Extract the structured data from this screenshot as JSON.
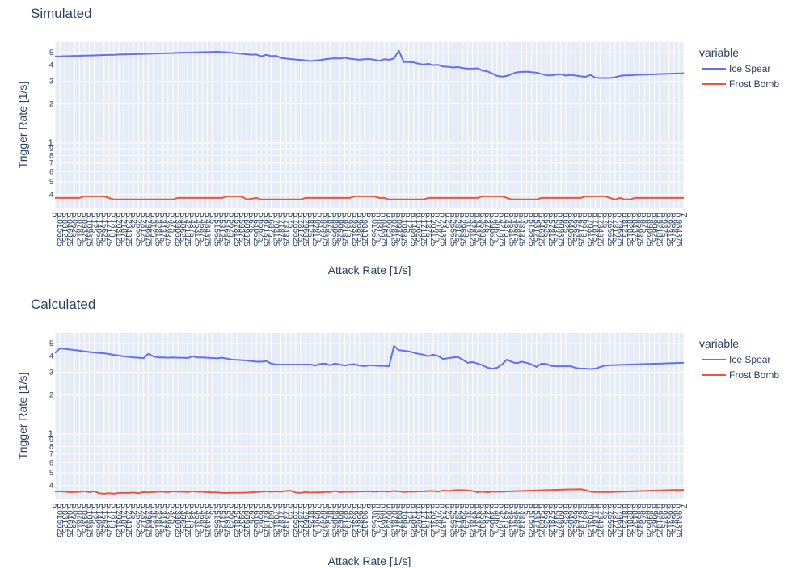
{
  "chart_data": [
    {
      "type": "line",
      "title": "Simulated",
      "x_label": "Attack Rate [1/s]",
      "y_label": "Trigger Rate [1/s]",
      "legend_title": "variable",
      "categories": [
        "5",
        "5.015625",
        "5.03125",
        "5.046875",
        "5.0625",
        "5.078125",
        "5.09375",
        "5.109375",
        "5.125",
        "5.140625",
        "5.15625",
        "5.171875",
        "5.1875",
        "5.203125",
        "5.21875",
        "5.234375",
        "5.25",
        "5.265625",
        "5.28125",
        "5.296875",
        "5.3125",
        "5.328125",
        "5.34375",
        "5.359375",
        "5.375",
        "5.390625",
        "5.40625",
        "5.421875",
        "5.4375",
        "5.453125",
        "5.46875",
        "5.484375",
        "5.5",
        "5.515625",
        "5.53125",
        "5.546875",
        "5.5625",
        "5.578125",
        "5.59375",
        "5.609375",
        "5.625",
        "5.640625",
        "5.65625",
        "5.671875",
        "5.6875",
        "5.703125",
        "5.71875",
        "5.734375",
        "5.75",
        "5.765625",
        "5.78125",
        "5.796875",
        "5.8125",
        "5.828125",
        "5.84375",
        "5.859375",
        "5.875",
        "5.890625",
        "5.90625",
        "5.921875",
        "5.9375",
        "5.953125",
        "5.96875",
        "5.984375",
        "6",
        "6.015625",
        "6.03125",
        "6.046875",
        "6.0625",
        "6.078125",
        "6.09375",
        "6.109375",
        "6.125",
        "6.140625",
        "6.15625",
        "6.171875",
        "6.1875",
        "6.203125",
        "6.21875",
        "6.234375",
        "6.25",
        "6.265625",
        "6.28125",
        "6.296875",
        "6.3125",
        "6.328125",
        "6.34375",
        "6.359375",
        "6.375",
        "6.390625",
        "6.40625",
        "6.421875",
        "6.4375",
        "6.453125",
        "6.46875",
        "6.484375",
        "6.5",
        "6.515625",
        "6.53125",
        "6.546875",
        "6.5625",
        "6.578125",
        "6.59375",
        "6.609375",
        "6.625",
        "6.640625",
        "6.65625",
        "6.671875",
        "6.6875",
        "6.703125",
        "6.71875",
        "6.734375",
        "6.75",
        "6.765625",
        "6.78125",
        "6.796875",
        "6.8125",
        "6.828125",
        "6.84375",
        "6.859375",
        "6.875",
        "6.890625",
        "6.90625",
        "6.921875",
        "6.9375",
        "6.953125",
        "6.96875",
        "6.984375",
        "7"
      ],
      "series": [
        {
          "name": "Ice Spear",
          "color": "#636efa",
          "values": [
            4.66,
            4.67,
            4.69,
            4.7,
            4.71,
            4.72,
            4.74,
            4.75,
            4.76,
            4.77,
            4.79,
            4.8,
            4.81,
            4.83,
            4.84,
            4.85,
            4.86,
            4.88,
            4.89,
            4.9,
            4.91,
            4.93,
            4.94,
            4.95,
            4.96,
            4.98,
            4.99,
            5.0,
            5.01,
            5.03,
            5.04,
            5.05,
            5.06,
            5.08,
            5.05,
            5.02,
            4.98,
            4.94,
            4.9,
            4.85,
            4.82,
            4.83,
            4.68,
            4.8,
            4.7,
            4.72,
            4.55,
            4.5,
            4.45,
            4.42,
            4.39,
            4.35,
            4.3,
            4.34,
            4.38,
            4.44,
            4.48,
            4.52,
            4.5,
            4.56,
            4.48,
            4.44,
            4.4,
            4.44,
            4.46,
            4.4,
            4.32,
            4.44,
            4.4,
            4.5,
            5.16,
            4.22,
            4.22,
            4.2,
            4.1,
            4.04,
            4.1,
            4.0,
            4.02,
            3.9,
            3.88,
            3.83,
            3.86,
            3.8,
            3.76,
            3.76,
            3.78,
            3.63,
            3.58,
            3.45,
            3.3,
            3.26,
            3.3,
            3.42,
            3.52,
            3.55,
            3.56,
            3.53,
            3.5,
            3.42,
            3.34,
            3.33,
            3.38,
            3.4,
            3.32,
            3.36,
            3.32,
            3.28,
            3.25,
            3.35,
            3.2,
            3.18,
            3.18,
            3.18,
            3.22,
            3.3,
            3.33,
            3.33,
            3.36,
            3.37,
            3.38,
            3.39,
            3.4,
            3.41,
            3.42,
            3.43,
            3.44,
            3.45,
            3.46
          ]
        },
        {
          "name": "Frost Bomb",
          "color": "#ef553b",
          "values": [
            0.376,
            0.376,
            0.376,
            0.376,
            0.376,
            0.376,
            0.387,
            0.387,
            0.387,
            0.387,
            0.387,
            0.376,
            0.366,
            0.366,
            0.366,
            0.366,
            0.366,
            0.366,
            0.366,
            0.366,
            0.366,
            0.366,
            0.366,
            0.366,
            0.366,
            0.376,
            0.376,
            0.376,
            0.376,
            0.376,
            0.376,
            0.376,
            0.376,
            0.376,
            0.376,
            0.387,
            0.387,
            0.387,
            0.387,
            0.366,
            0.37,
            0.376,
            0.366,
            0.366,
            0.366,
            0.366,
            0.366,
            0.366,
            0.366,
            0.366,
            0.366,
            0.376,
            0.376,
            0.376,
            0.376,
            0.376,
            0.376,
            0.376,
            0.376,
            0.376,
            0.376,
            0.387,
            0.387,
            0.387,
            0.387,
            0.387,
            0.376,
            0.376,
            0.366,
            0.366,
            0.366,
            0.366,
            0.366,
            0.366,
            0.366,
            0.366,
            0.376,
            0.376,
            0.376,
            0.376,
            0.376,
            0.376,
            0.376,
            0.376,
            0.376,
            0.376,
            0.376,
            0.387,
            0.387,
            0.387,
            0.387,
            0.387,
            0.376,
            0.366,
            0.366,
            0.366,
            0.366,
            0.366,
            0.366,
            0.376,
            0.376,
            0.376,
            0.376,
            0.376,
            0.376,
            0.376,
            0.376,
            0.376,
            0.387,
            0.387,
            0.387,
            0.387,
            0.387,
            0.376,
            0.366,
            0.376,
            0.366,
            0.366,
            0.376,
            0.376,
            0.376,
            0.376,
            0.376,
            0.376,
            0.376,
            0.376,
            0.376,
            0.376,
            0.376
          ]
        }
      ],
      "log_y": true,
      "grid": true,
      "ylim": [
        0.316,
        6.03
      ],
      "yticks": [
        {
          "value": 0.4,
          "label": "4"
        },
        {
          "value": 0.5,
          "label": "5"
        },
        {
          "value": 0.6,
          "label": "6"
        },
        {
          "value": 0.7,
          "label": "7"
        },
        {
          "value": 0.8,
          "label": "8"
        },
        {
          "value": 0.9,
          "label": "9"
        },
        1,
        2,
        3,
        4,
        5
      ]
    },
    {
      "type": "line",
      "title": "Calculated",
      "x_label": "Attack Rate [1/s]",
      "y_label": "Trigger Rate [1/s]",
      "legend_title": "variable",
      "categories": [
        "5",
        "5.015625",
        "5.03125",
        "5.046875",
        "5.0625",
        "5.078125",
        "5.09375",
        "5.109375",
        "5.125",
        "5.140625",
        "5.15625",
        "5.171875",
        "5.1875",
        "5.203125",
        "5.21875",
        "5.234375",
        "5.25",
        "5.265625",
        "5.28125",
        "5.296875",
        "5.3125",
        "5.328125",
        "5.34375",
        "5.359375",
        "5.375",
        "5.390625",
        "5.40625",
        "5.421875",
        "5.4375",
        "5.453125",
        "5.46875",
        "5.484375",
        "5.5",
        "5.515625",
        "5.53125",
        "5.546875",
        "5.5625",
        "5.578125",
        "5.59375",
        "5.609375",
        "5.625",
        "5.640625",
        "5.65625",
        "5.671875",
        "5.6875",
        "5.703125",
        "5.71875",
        "5.734375",
        "5.75",
        "5.765625",
        "5.78125",
        "5.796875",
        "5.8125",
        "5.828125",
        "5.84375",
        "5.859375",
        "5.875",
        "5.890625",
        "5.90625",
        "5.921875",
        "5.9375",
        "5.953125",
        "5.96875",
        "5.984375",
        "6",
        "6.015625",
        "6.03125",
        "6.046875",
        "6.0625",
        "6.078125",
        "6.09375",
        "6.109375",
        "6.125",
        "6.140625",
        "6.15625",
        "6.171875",
        "6.1875",
        "6.203125",
        "6.21875",
        "6.234375",
        "6.25",
        "6.265625",
        "6.28125",
        "6.296875",
        "6.3125",
        "6.328125",
        "6.34375",
        "6.359375",
        "6.375",
        "6.390625",
        "6.40625",
        "6.421875",
        "6.4375",
        "6.453125",
        "6.46875",
        "6.484375",
        "6.5",
        "6.515625",
        "6.53125",
        "6.546875",
        "6.5625",
        "6.578125",
        "6.59375",
        "6.609375",
        "6.625",
        "6.640625",
        "6.65625",
        "6.671875",
        "6.6875",
        "6.703125",
        "6.71875",
        "6.734375",
        "6.75",
        "6.765625",
        "6.78125",
        "6.796875",
        "6.8125",
        "6.828125",
        "6.84375",
        "6.859375",
        "6.875",
        "6.890625",
        "6.90625",
        "6.921875",
        "6.9375",
        "6.953125",
        "6.96875",
        "6.984375",
        "7"
      ],
      "series": [
        {
          "name": "Ice Spear",
          "color": "#636efa",
          "values": [
            4.22,
            4.59,
            4.55,
            4.5,
            4.45,
            4.4,
            4.35,
            4.3,
            4.26,
            4.22,
            4.2,
            4.15,
            4.08,
            4.04,
            3.98,
            3.95,
            3.9,
            3.88,
            3.85,
            4.16,
            3.98,
            3.9,
            3.9,
            3.88,
            3.9,
            3.88,
            3.88,
            3.86,
            3.98,
            3.9,
            3.9,
            3.88,
            3.86,
            3.84,
            3.88,
            3.82,
            3.76,
            3.74,
            3.72,
            3.7,
            3.66,
            3.62,
            3.62,
            3.66,
            3.5,
            3.44,
            3.44,
            3.44,
            3.44,
            3.44,
            3.44,
            3.44,
            3.44,
            3.38,
            3.48,
            3.5,
            3.4,
            3.5,
            3.44,
            3.38,
            3.44,
            3.46,
            3.38,
            3.34,
            3.4,
            3.38,
            3.36,
            3.36,
            3.34,
            4.79,
            4.44,
            4.4,
            4.35,
            4.25,
            4.16,
            4.1,
            3.99,
            4.1,
            4.0,
            3.8,
            3.85,
            3.9,
            3.93,
            3.75,
            3.55,
            3.6,
            3.5,
            3.4,
            3.26,
            3.2,
            3.25,
            3.45,
            3.76,
            3.6,
            3.52,
            3.62,
            3.55,
            3.45,
            3.3,
            3.5,
            3.48,
            3.36,
            3.34,
            3.34,
            3.34,
            3.34,
            3.24,
            3.2,
            3.2,
            3.18,
            3.2,
            3.3,
            3.38,
            3.4,
            3.41,
            3.42,
            3.43,
            3.44,
            3.45,
            3.46,
            3.47,
            3.48,
            3.49,
            3.5,
            3.51,
            3.52,
            3.53,
            3.54,
            3.55
          ]
        },
        {
          "name": "Frost Bomb",
          "color": "#ef553b",
          "values": [
            0.36,
            0.36,
            0.358,
            0.355,
            0.355,
            0.358,
            0.36,
            0.355,
            0.36,
            0.348,
            0.345,
            0.348,
            0.345,
            0.35,
            0.35,
            0.35,
            0.352,
            0.348,
            0.355,
            0.353,
            0.355,
            0.358,
            0.358,
            0.355,
            0.36,
            0.358,
            0.358,
            0.356,
            0.36,
            0.357,
            0.357,
            0.355,
            0.353,
            0.353,
            0.35,
            0.35,
            0.351,
            0.351,
            0.351,
            0.352,
            0.354,
            0.356,
            0.358,
            0.36,
            0.357,
            0.36,
            0.358,
            0.362,
            0.364,
            0.352,
            0.35,
            0.356,
            0.352,
            0.353,
            0.353,
            0.356,
            0.356,
            0.362,
            0.355,
            0.358,
            0.357,
            0.358,
            0.359,
            0.36,
            0.36,
            0.358,
            0.36,
            0.36,
            0.358,
            0.362,
            0.36,
            0.356,
            0.358,
            0.358,
            0.36,
            0.36,
            0.362,
            0.362,
            0.358,
            0.366,
            0.362,
            0.366,
            0.368,
            0.368,
            0.366,
            0.362,
            0.355,
            0.358,
            0.354,
            0.358,
            0.358,
            0.358,
            0.36,
            0.36,
            0.362,
            0.362,
            0.364,
            0.365,
            0.366,
            0.367,
            0.368,
            0.369,
            0.37,
            0.371,
            0.372,
            0.373,
            0.373,
            0.374,
            0.368,
            0.358,
            0.356,
            0.356,
            0.356,
            0.356,
            0.357,
            0.358,
            0.359,
            0.36,
            0.361,
            0.362,
            0.363,
            0.364,
            0.365,
            0.366,
            0.367,
            0.368,
            0.369,
            0.369,
            0.37
          ]
        }
      ],
      "log_y": true,
      "grid": true,
      "ylim": [
        0.316,
        6.03
      ],
      "yticks": [
        {
          "value": 0.4,
          "label": "4"
        },
        {
          "value": 0.5,
          "label": "5"
        },
        {
          "value": 0.6,
          "label": "6"
        },
        {
          "value": 0.7,
          "label": "7"
        },
        {
          "value": 0.8,
          "label": "8"
        },
        {
          "value": 0.9,
          "label": "9"
        },
        1,
        2,
        3,
        4,
        5
      ]
    }
  ]
}
